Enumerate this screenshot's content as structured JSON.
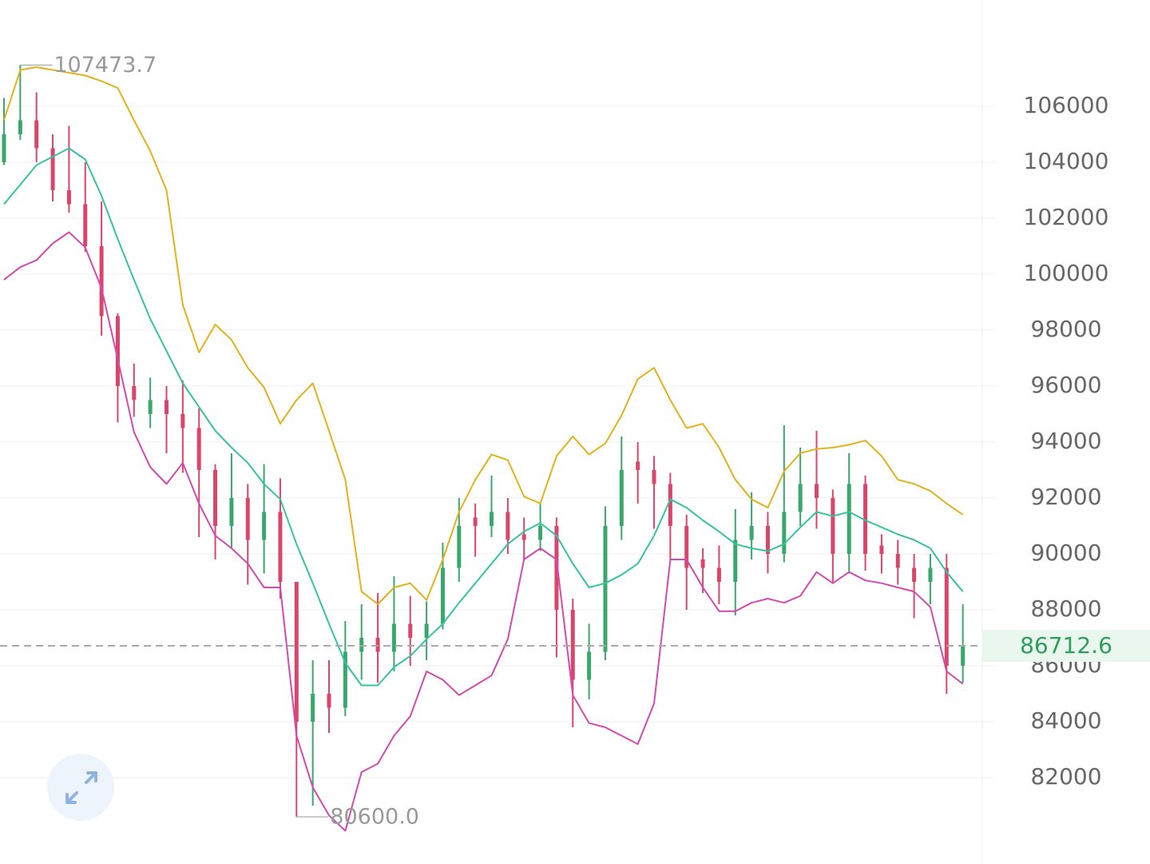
{
  "chart_data": {
    "type": "candlestick",
    "ylim": [
      78914,
      109800
    ],
    "yticks": [
      82000,
      84000,
      86000,
      88000,
      90000,
      92000,
      94000,
      96000,
      98000,
      100000,
      102000,
      104000,
      106000
    ],
    "grid": true,
    "up_color": "#3aa76d",
    "down_color": "#d9466a",
    "ohlc": [
      [
        104000,
        106300,
        103900,
        105000
      ],
      [
        105000,
        107473.7,
        104800,
        105500
      ],
      [
        105500,
        106500,
        104000,
        104500
      ],
      [
        104500,
        105000,
        102600,
        103000
      ],
      [
        103000,
        105300,
        102200,
        102500
      ],
      [
        102500,
        104000,
        100800,
        101000
      ],
      [
        101000,
        102600,
        97800,
        98500
      ],
      [
        98500,
        98600,
        94700,
        96000
      ],
      [
        96000,
        96800,
        94900,
        95500
      ],
      [
        95000,
        96300,
        94500,
        95500
      ],
      [
        95500,
        96000,
        93600,
        95000
      ],
      [
        95000,
        96200,
        92900,
        94500
      ],
      [
        94500,
        95200,
        90600,
        93000
      ],
      [
        93000,
        93200,
        89800,
        91000
      ],
      [
        91000,
        93600,
        90200,
        92000
      ],
      [
        92000,
        92500,
        88900,
        90500
      ],
      [
        90500,
        93200,
        89300,
        91500
      ],
      [
        91500,
        92700,
        88400,
        89000
      ],
      [
        89000,
        89000,
        80600,
        84000
      ],
      [
        84000,
        86200,
        81000,
        85000
      ],
      [
        85000,
        86200,
        83600,
        84500
      ],
      [
        84500,
        87600,
        84200,
        86500
      ],
      [
        86500,
        88200,
        85500,
        87000
      ],
      [
        87000,
        88600,
        85400,
        86500
      ],
      [
        86500,
        89200,
        85800,
        87500
      ],
      [
        87500,
        88500,
        86000,
        87000
      ],
      [
        87000,
        88300,
        86200,
        87500
      ],
      [
        87500,
        90400,
        87300,
        89500
      ],
      [
        89500,
        92000,
        89000,
        91000
      ],
      [
        91300,
        91800,
        89900,
        91000
      ],
      [
        91000,
        92800,
        90600,
        91500
      ],
      [
        91500,
        92000,
        90000,
        90500
      ],
      [
        90700,
        91300,
        89800,
        90500
      ],
      [
        90500,
        91800,
        90100,
        91000
      ],
      [
        91000,
        91300,
        86300,
        88000
      ],
      [
        88000,
        88400,
        83800,
        85500
      ],
      [
        85500,
        87500,
        84800,
        86500
      ],
      [
        86500,
        91700,
        86200,
        91000
      ],
      [
        91000,
        94200,
        90500,
        93000
      ],
      [
        93300,
        94000,
        91800,
        93000
      ],
      [
        93000,
        93500,
        90900,
        92500
      ],
      [
        92500,
        92900,
        89800,
        91000
      ],
      [
        91000,
        91400,
        88000,
        89500
      ],
      [
        89800,
        90200,
        88600,
        89500
      ],
      [
        89500,
        90300,
        88200,
        89000
      ],
      [
        89000,
        91600,
        87800,
        90500
      ],
      [
        90500,
        92200,
        89800,
        91000
      ],
      [
        91000,
        91500,
        89300,
        90000
      ],
      [
        90000,
        94600,
        89700,
        91500
      ],
      [
        91500,
        93800,
        91000,
        92500
      ],
      [
        92500,
        94400,
        90900,
        92000
      ],
      [
        92000,
        92300,
        89000,
        90000
      ],
      [
        90000,
        93600,
        89300,
        92500
      ],
      [
        92500,
        92800,
        89400,
        90000
      ],
      [
        90300,
        90700,
        89300,
        90000
      ],
      [
        90000,
        90500,
        88900,
        89500
      ],
      [
        89500,
        90000,
        87700,
        89000
      ],
      [
        89000,
        90000,
        88200,
        89500
      ],
      [
        89500,
        90000,
        85000,
        86000
      ],
      [
        86000,
        88200,
        85400,
        86712.6
      ]
    ],
    "lines": [
      {
        "color": "#e2b21c",
        "values": [
          105500,
          107300,
          107400,
          107300,
          107200,
          107100,
          106900,
          106650,
          105500,
          104400,
          103000,
          98900,
          97200,
          98200,
          97650,
          96650,
          95950,
          94650,
          95500,
          96100,
          94400,
          92650,
          88650,
          88200,
          88800,
          88950,
          88350,
          89800,
          91500,
          92650,
          93550,
          93350,
          92050,
          91800,
          93500,
          94200,
          93550,
          93950,
          94950,
          96250,
          96650,
          95500,
          94500,
          94650,
          93800,
          92650,
          91950,
          91650,
          92950,
          93600,
          93750,
          93800,
          93900,
          94050,
          93500,
          92650,
          92500,
          92250,
          91800,
          91400
        ]
      },
      {
        "color": "#35c3a0",
        "values": [
          102500,
          103200,
          103900,
          104200,
          104500,
          104100,
          102800,
          101250,
          99800,
          98400,
          97250,
          96100,
          95250,
          94400,
          93800,
          93250,
          92500,
          91950,
          90350,
          88950,
          87500,
          86100,
          85300,
          85300,
          85950,
          86350,
          86950,
          87500,
          88250,
          88950,
          89650,
          90350,
          90800,
          91100,
          90650,
          89650,
          88800,
          88950,
          89250,
          89650,
          90650,
          91950,
          91650,
          91200,
          90800,
          90350,
          90200,
          90100,
          90350,
          90950,
          91500,
          91350,
          91500,
          91200,
          90950,
          90700,
          90500,
          90200,
          89350,
          88650
        ]
      },
      {
        "color": "#d24ab0",
        "values": [
          99800,
          100250,
          100500,
          101100,
          101500,
          100950,
          99500,
          96950,
          94350,
          93100,
          92500,
          93250,
          91800,
          90650,
          90200,
          89650,
          88800,
          88800,
          83500,
          81650,
          80650,
          80100,
          82200,
          82500,
          83500,
          84200,
          85800,
          85500,
          84950,
          85300,
          85650,
          86950,
          89800,
          90200,
          89800,
          84950,
          83950,
          83800,
          83500,
          83200,
          84650,
          89800,
          89800,
          88800,
          87950,
          87950,
          88250,
          88400,
          88250,
          88500,
          89350,
          88950,
          89350,
          89050,
          88950,
          88800,
          88650,
          88100,
          85800,
          85350
        ]
      }
    ],
    "annotations": [
      {
        "value": 107473.7,
        "label": "107473.7"
      },
      {
        "value": 80600,
        "label": "80600.0"
      }
    ],
    "last_price": {
      "value": 86712.6,
      "label": "86712.6"
    }
  }
}
